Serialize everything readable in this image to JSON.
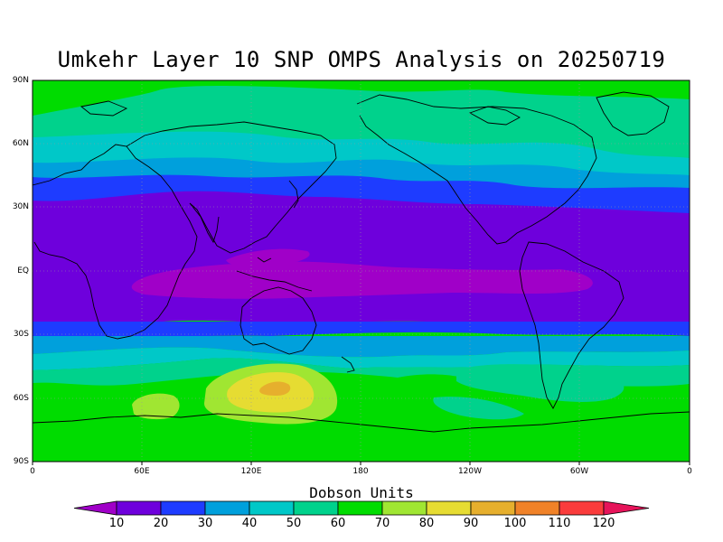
{
  "title": "Umkehr Layer 10 SNP OMPS Analysis on 20250719",
  "lat_labels": [
    "90N",
    "60N",
    "30N",
    "EQ",
    "30S",
    "60S",
    "90S"
  ],
  "lon_labels": [
    "0",
    "60E",
    "120E",
    "180",
    "120W",
    "60W",
    "0"
  ],
  "colorbar": {
    "title": "Dobson Units",
    "labels": [
      "10",
      "20",
      "30",
      "40",
      "50",
      "60",
      "70",
      "80",
      "90",
      "100",
      "110",
      "120"
    ],
    "colors": [
      "#a000c8",
      "#6e00dc",
      "#1e3cff",
      "#00a0dc",
      "#00c8c8",
      "#00d28c",
      "#00dc00",
      "#a0e632",
      "#e6dc32",
      "#e6af2d",
      "#f08228",
      "#fa3c3c",
      "#e6145a"
    ]
  },
  "chart_data": {
    "type": "heatmap",
    "title": "Umkehr Layer 10 SNP OMPS Analysis on 20250719",
    "xlabel": "",
    "ylabel": "",
    "x_range": [
      0,
      360
    ],
    "y_range": [
      -90,
      90
    ],
    "levels": [
      10,
      20,
      30,
      40,
      50,
      60,
      70,
      80,
      90,
      100,
      110,
      120
    ],
    "units": "Dobson Units",
    "zonal_bands": [
      {
        "lat_from": 90,
        "lat_to": 80,
        "value_range": "60-70"
      },
      {
        "lat_from": 80,
        "lat_to": 60,
        "value_range": "50-60"
      },
      {
        "lat_from": 60,
        "lat_to": 48,
        "value_range": "40-50"
      },
      {
        "lat_from": 48,
        "lat_to": 40,
        "value_range": "30-40"
      },
      {
        "lat_from": 40,
        "lat_to": 28,
        "value_range": "20-30"
      },
      {
        "lat_from": 28,
        "lat_to": -22,
        "value_range": "10-20"
      },
      {
        "lat_from": 5,
        "lat_to": -10,
        "value_range": "<10"
      },
      {
        "lat_from": -22,
        "lat_to": -30,
        "value_range": "20-30"
      },
      {
        "lat_from": -30,
        "lat_to": -40,
        "value_range": "30-40"
      },
      {
        "lat_from": -40,
        "lat_to": -50,
        "value_range": "50-60"
      },
      {
        "lat_from": -50,
        "lat_to": -90,
        "value_range": "60-70"
      }
    ],
    "features": [
      {
        "lon": 132,
        "lat": -53,
        "value_range": "80-100"
      },
      {
        "lon": 55,
        "lat": -63,
        "value_range": "70-80"
      }
    ],
    "grid": true
  }
}
